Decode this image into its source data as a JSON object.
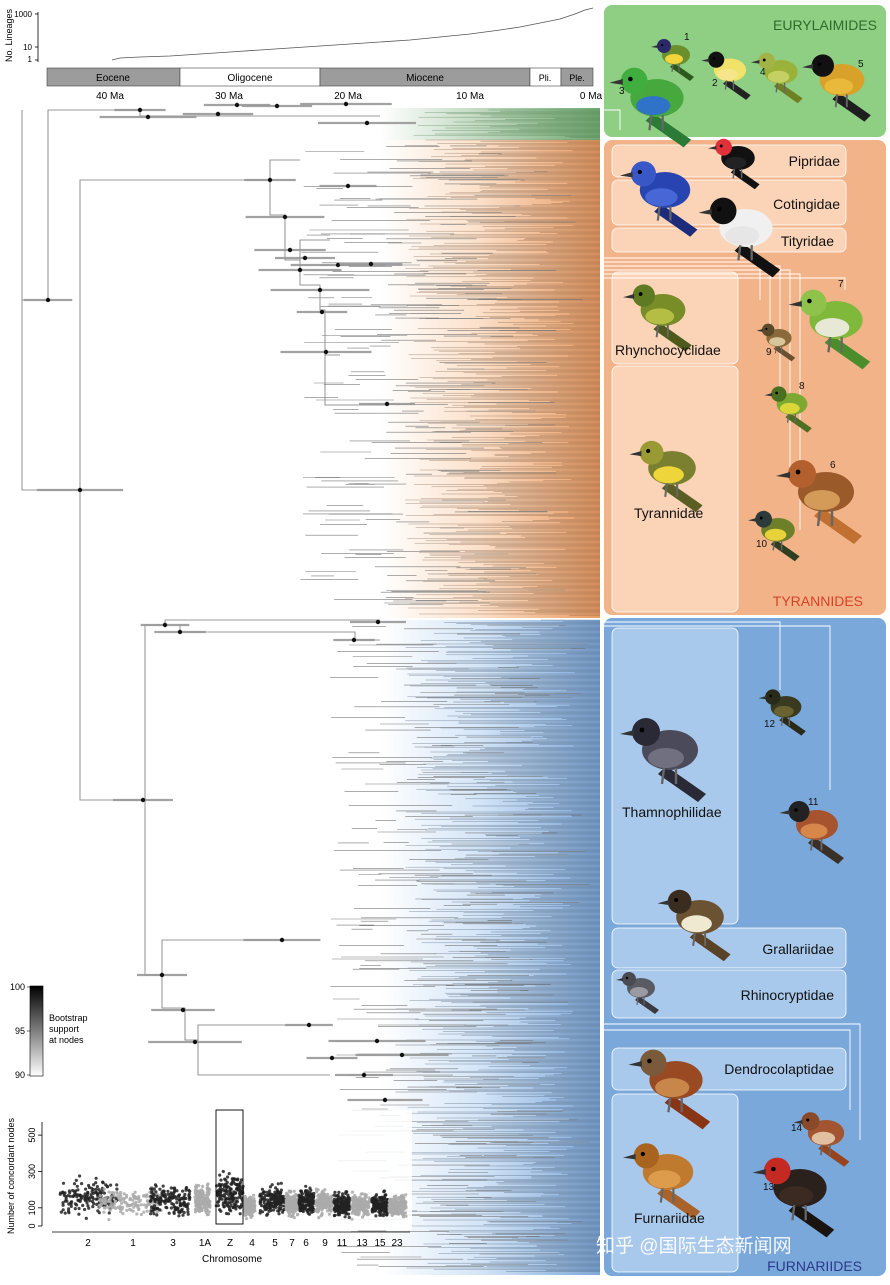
{
  "lineage_plot": {
    "y_axis_label": "No. Lineages",
    "y_ticks": [
      "1",
      "10",
      "1000"
    ]
  },
  "timescale": {
    "epochs": [
      "Eocene",
      "Oligocene",
      "Miocene",
      "Pli.",
      "Ple."
    ],
    "ticks": [
      "40 Ma",
      "30 Ma",
      "20 Ma",
      "10 Ma",
      "0 Ma"
    ]
  },
  "clades": {
    "eurylaimides": "EURYLAIMIDES",
    "tyrannides": "TYRANNIDES",
    "furnariides": "FURNARIIDES"
  },
  "families": {
    "pipridae": "Pipridae",
    "cotingidae": "Cotingidae",
    "tityridae": "Tityridae",
    "rhynchocyclidae": "Rhynchocyclidae",
    "tyrannidae": "Tyrannidae",
    "thamnophilidae": "Thamnophilidae",
    "grallariidae": "Grallariidae",
    "rhinocryptidae": "Rhinocryptidae",
    "dendrocolaptidae": "Dendrocolaptidae",
    "furnariidae": "Furnariidae"
  },
  "bird_numbers": [
    "1",
    "2",
    "3",
    "4",
    "5",
    "6",
    "7",
    "8",
    "9",
    "10",
    "11",
    "12",
    "13",
    "14"
  ],
  "bootstrap_legend": {
    "title": "Bootstrap\nsupport\nat nodes",
    "line1": "Bootstrap",
    "line2": "support",
    "line3": "at nodes",
    "ticks": [
      "100",
      "95",
      "90"
    ]
  },
  "chromosome_chart": {
    "y_label": "Number of concordant nodes",
    "x_label": "Chromosome",
    "y_ticks": [
      "0",
      "100",
      "300",
      "500"
    ],
    "x_ticks": [
      "2",
      "1",
      "3",
      "1A",
      "Z",
      "4",
      "5",
      "7",
      "6",
      "9",
      "11",
      "13",
      "15",
      "23"
    ]
  },
  "watermark": "知乎 @国际生态新闻网",
  "colors": {
    "eurylaimides_bg": "#8fcf84",
    "tyrannides_bg": "#f3b389",
    "tyrannides_panel": "#fbd4b7",
    "furnariides_bg": "#7aa8db",
    "furnariides_panel": "#a9c9ec",
    "tyrannides_title": "#d64226",
    "eurylaimides_title": "#2f6b2a",
    "furnariides_title": "#2a3a8a"
  }
}
